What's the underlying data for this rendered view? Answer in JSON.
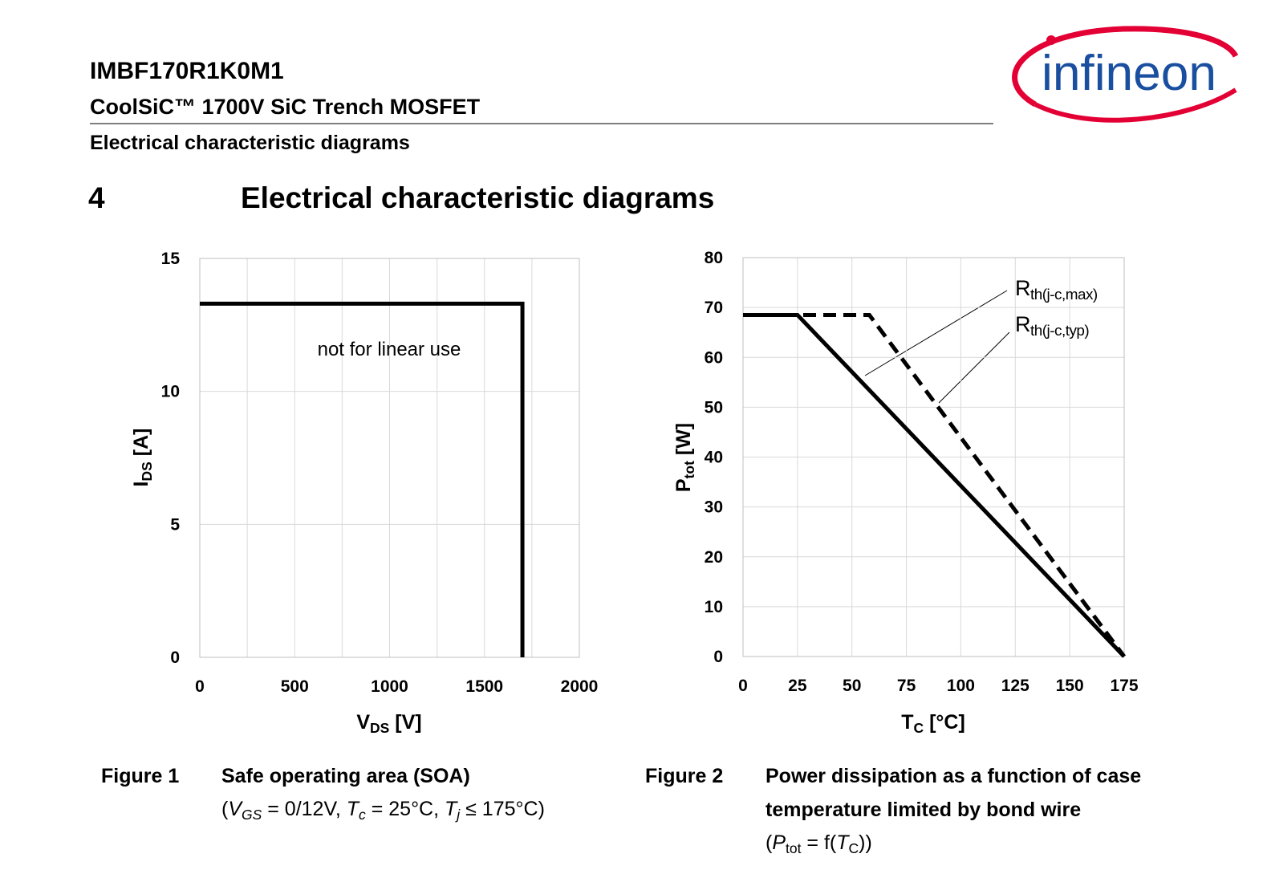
{
  "header": {
    "part": "IMBF170R1K0M1",
    "product": "CoolSiC™ 1700V SiC Trench MOSFET",
    "section": "Electrical characteristic diagrams",
    "logo": "infineon"
  },
  "heading": {
    "number": "4",
    "title": "Electrical characteristic diagrams"
  },
  "chart_data": [
    {
      "type": "line",
      "xlim": [
        0,
        2000
      ],
      "xticks": [
        0,
        500,
        1000,
        1500,
        2000
      ],
      "x_minor_grid": [
        250,
        750,
        1250,
        1750
      ],
      "ylim": [
        0,
        15
      ],
      "yticks": [
        0,
        5,
        10,
        15
      ],
      "grid": true,
      "xlabel": {
        "main": "V",
        "sub": "DS",
        "rest": " [V]"
      },
      "ylabel": {
        "main": "I",
        "sub": "DS",
        "rest": " [A]"
      },
      "annotation": "not for linear use",
      "series": [
        {
          "color": "#000000",
          "dash": false,
          "x": [
            0,
            1700,
            1700
          ],
          "values": [
            13.3,
            13.3,
            0
          ]
        }
      ]
    },
    {
      "type": "line",
      "xlim": [
        0,
        175
      ],
      "xticks": [
        0,
        25,
        50,
        75,
        100,
        125,
        150,
        175
      ],
      "ylim": [
        0,
        80
      ],
      "yticks": [
        0,
        10,
        20,
        30,
        40,
        50,
        60,
        70,
        80
      ],
      "grid": true,
      "xlabel": {
        "main": "T",
        "sub": "C",
        "rest": " [°C]"
      },
      "ylabel": {
        "main": "P",
        "sub": "tot",
        "rest": " [W]"
      },
      "series": [
        {
          "name": "R",
          "name_sub": "th(j-c,max)",
          "color": "#000000",
          "dash": false,
          "x": [
            0,
            25,
            175
          ],
          "values": [
            68.5,
            68.5,
            0
          ]
        },
        {
          "name": "R",
          "name_sub": "th(j-c,typ)",
          "color": "#000000",
          "dash": true,
          "x": [
            0,
            58,
            175
          ],
          "values": [
            68.5,
            68.5,
            0
          ]
        }
      ]
    }
  ],
  "captions": [
    {
      "figure": "Figure 1",
      "title_lines": [
        "Safe operating area (SOA)"
      ],
      "conditions": [
        "(",
        "V",
        "GS",
        " = 0/12V, ",
        "T",
        "c",
        " = 25°C, ",
        "T",
        "j",
        " ≤ 175°C)"
      ]
    },
    {
      "figure": "Figure 2",
      "title_lines": [
        "Power dissipation as a function of case",
        "temperature limited by bond wire"
      ],
      "conditions": [
        "(",
        "P",
        "tot",
        " = f(",
        "T",
        "C",
        "))"
      ]
    }
  ]
}
